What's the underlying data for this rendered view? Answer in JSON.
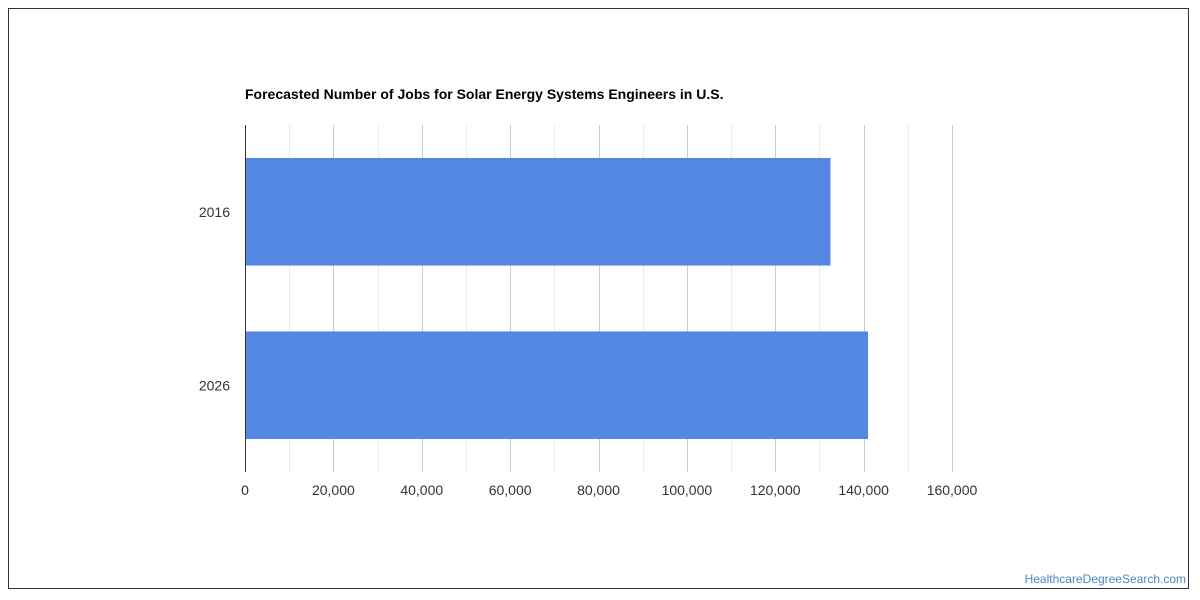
{
  "chart_data": {
    "type": "bar",
    "orientation": "horizontal",
    "title": "Forecasted Number of Jobs for Solar Energy Systems Engineers in U.S.",
    "xlabel": "",
    "ylabel": "",
    "categories": [
      "2016",
      "2026"
    ],
    "values": [
      132500,
      141000
    ],
    "xlim": [
      0,
      160000
    ],
    "x_ticks": [
      0,
      20000,
      40000,
      60000,
      80000,
      100000,
      120000,
      140000,
      160000
    ],
    "x_tick_labels": [
      "0",
      "20,000",
      "40,000",
      "60,000",
      "80,000",
      "100,000",
      "120,000",
      "140,000",
      "160,000"
    ],
    "grid": true,
    "legend": "none",
    "bar_color": "#5486e3"
  },
  "watermark": "HealthcareDegreeSearch.com"
}
